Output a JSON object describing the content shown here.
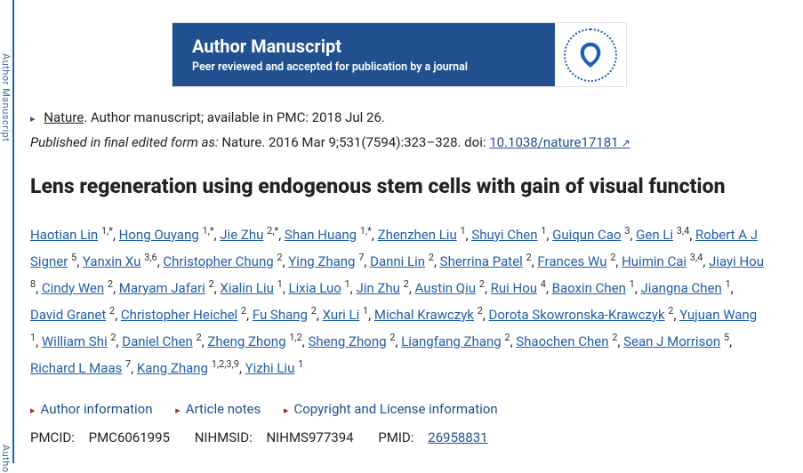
{
  "sideLabel": "Author Manuscript",
  "banner": {
    "title": "Author Manuscript",
    "sub": "Peer reviewed and accepted for publication by a journal"
  },
  "journalLine": {
    "journal": "Nature",
    "rest": ". Author manuscript; available in PMC: 2018 Jul 26."
  },
  "publishedLine": {
    "prefix": "Published in final edited form as:",
    "cite": " Nature. 2016 Mar 9;531(7594):323–328. doi: ",
    "doi": "10.1038/nature17181"
  },
  "title": "Lens regeneration using endogenous stem cells with gain of visual function",
  "authors": [
    {
      "n": "Haotian Lin",
      "s": "1,*"
    },
    {
      "n": "Hong Ouyang",
      "s": "1,*"
    },
    {
      "n": "Jie Zhu",
      "s": "2,*"
    },
    {
      "n": "Shan Huang",
      "s": "1,*"
    },
    {
      "n": "Zhenzhen Liu",
      "s": "1"
    },
    {
      "n": "Shuyi Chen",
      "s": "1"
    },
    {
      "n": "Guiqun Cao",
      "s": "3"
    },
    {
      "n": "Gen Li",
      "s": "3,4"
    },
    {
      "n": "Robert A J Signer",
      "s": "5"
    },
    {
      "n": "Yanxin Xu",
      "s": "3,6"
    },
    {
      "n": "Christopher Chung",
      "s": "2"
    },
    {
      "n": "Ying Zhang",
      "s": "7"
    },
    {
      "n": "Danni Lin",
      "s": "2"
    },
    {
      "n": "Sherrina Patel",
      "s": "2"
    },
    {
      "n": "Frances Wu",
      "s": "2"
    },
    {
      "n": "Huimin Cai",
      "s": "3,4"
    },
    {
      "n": "Jiayi Hou",
      "s": "8"
    },
    {
      "n": "Cindy Wen",
      "s": "2"
    },
    {
      "n": "Maryam Jafari",
      "s": "2"
    },
    {
      "n": "Xialin Liu",
      "s": "1"
    },
    {
      "n": "Lixia Luo",
      "s": "1"
    },
    {
      "n": "Jin Zhu",
      "s": "2"
    },
    {
      "n": "Austin Qiu",
      "s": "2"
    },
    {
      "n": "Rui Hou",
      "s": "4"
    },
    {
      "n": "Baoxin Chen",
      "s": "1"
    },
    {
      "n": "Jiangna Chen",
      "s": "1"
    },
    {
      "n": "David Granet",
      "s": "2"
    },
    {
      "n": "Christopher Heichel",
      "s": "2"
    },
    {
      "n": "Fu Shang",
      "s": "2"
    },
    {
      "n": "Xuri Li",
      "s": "1"
    },
    {
      "n": "Michal Krawczyk",
      "s": "2"
    },
    {
      "n": "Dorota Skowronska-Krawczyk",
      "s": "2"
    },
    {
      "n": "Yujuan Wang",
      "s": "1"
    },
    {
      "n": "William Shi",
      "s": "2"
    },
    {
      "n": "Daniel Chen",
      "s": "2"
    },
    {
      "n": "Zheng Zhong",
      "s": "1,2"
    },
    {
      "n": "Sheng Zhong",
      "s": "2"
    },
    {
      "n": "Liangfang Zhang",
      "s": "2"
    },
    {
      "n": "Shaochen Chen",
      "s": "2"
    },
    {
      "n": "Sean J Morrison",
      "s": "5"
    },
    {
      "n": "Richard L Maas",
      "s": "7"
    },
    {
      "n": "Kang Zhang",
      "s": "1,2,3,9"
    },
    {
      "n": "Yizhi Liu",
      "s": "1"
    }
  ],
  "actions": {
    "info": "Author information",
    "notes": "Article notes",
    "copy": "Copyright and License information"
  },
  "ids": {
    "pmcidLabel": "PMCID:",
    "pmcid": "PMC6061995",
    "nihLabel": "NIHMSID:",
    "nih": "NIHMS977394",
    "pmidLabel": "PMID:",
    "pmid": "26958831"
  }
}
